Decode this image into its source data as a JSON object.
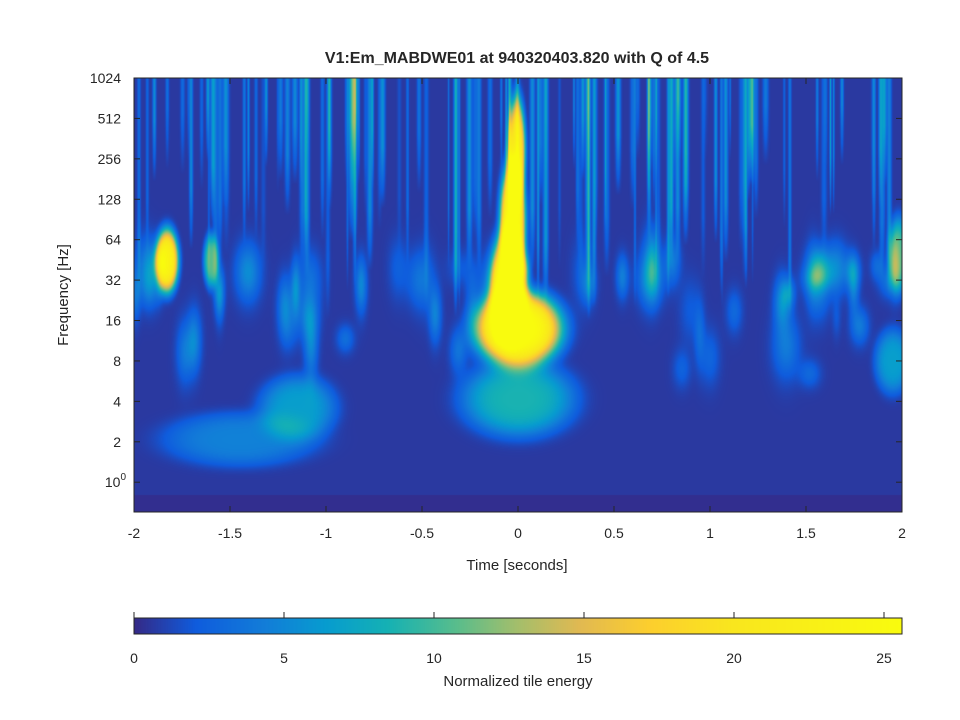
{
  "chart_data": {
    "type": "heatmap",
    "title": "V1:Em_MABDWE01 at 940320403.820 with Q of 4.5",
    "xlabel": "Time [seconds]",
    "ylabel": "Frequency [Hz]",
    "xlim": [
      -2,
      2
    ],
    "ylim": [
      0.6,
      1024
    ],
    "y_scale": "log2",
    "x_ticks": [
      "-2",
      "-1.5",
      "-1",
      "-0.5",
      "0",
      "0.5",
      "1",
      "1.5",
      "2"
    ],
    "x_tick_values": [
      -2,
      -1.5,
      -1,
      -0.5,
      0,
      0.5,
      1,
      1.5,
      2
    ],
    "y_ticks": [
      {
        "label": "10",
        "sup": "0",
        "value": 1
      },
      {
        "label": "2",
        "sup": "",
        "value": 2
      },
      {
        "label": "4",
        "sup": "",
        "value": 4
      },
      {
        "label": "8",
        "sup": "",
        "value": 8
      },
      {
        "label": "16",
        "sup": "",
        "value": 16
      },
      {
        "label": "32",
        "sup": "",
        "value": 32
      },
      {
        "label": "64",
        "sup": "",
        "value": 64
      },
      {
        "label": "128",
        "sup": "",
        "value": 128
      },
      {
        "label": "256",
        "sup": "",
        "value": 256
      },
      {
        "label": "512",
        "sup": "",
        "value": 512
      },
      {
        "label": "1024",
        "sup": "",
        "value": 1024
      }
    ],
    "colorbar": {
      "label": "Normalized tile energy",
      "range": [
        0,
        25.6
      ],
      "ticks": [
        "0",
        "5",
        "10",
        "15",
        "20",
        "25"
      ],
      "tick_values": [
        0,
        5,
        10,
        15,
        20,
        25
      ],
      "colormap": "parula"
    },
    "features": [
      {
        "t": 0.0,
        "f": 14,
        "energy": 25.6,
        "dt": 0.17,
        "dlogf": 0.7
      },
      {
        "t": -0.05,
        "f": 30,
        "energy": 25,
        "dt": 0.07,
        "dlogf": 1.0
      },
      {
        "t": -0.03,
        "f": 90,
        "energy": 24,
        "dt": 0.05,
        "dlogf": 1.1
      },
      {
        "t": -0.01,
        "f": 300,
        "energy": 20,
        "dt": 0.035,
        "dlogf": 1.0
      },
      {
        "t": -1.83,
        "f": 45,
        "energy": 22,
        "dt": 0.045,
        "dlogf": 0.6
      },
      {
        "t": -1.6,
        "f": 45,
        "energy": 10,
        "dt": 0.03,
        "dlogf": 0.5
      },
      {
        "t": 0.0,
        "f": 4.2,
        "energy": 8,
        "dt": 0.22,
        "dlogf": 0.7
      },
      {
        "t": -1.15,
        "f": 3.6,
        "energy": 6,
        "dt": 0.15,
        "dlogf": 0.6
      },
      {
        "t": -1.45,
        "f": 2.1,
        "energy": 4,
        "dt": 0.3,
        "dlogf": 0.5
      },
      {
        "t": 1.98,
        "f": 50,
        "energy": 9,
        "dt": 0.04,
        "dlogf": 0.7
      },
      {
        "t": 1.95,
        "f": 8,
        "energy": 6,
        "dt": 0.07,
        "dlogf": 0.6
      }
    ],
    "grid": false,
    "legend": "colorbar-bottom"
  }
}
